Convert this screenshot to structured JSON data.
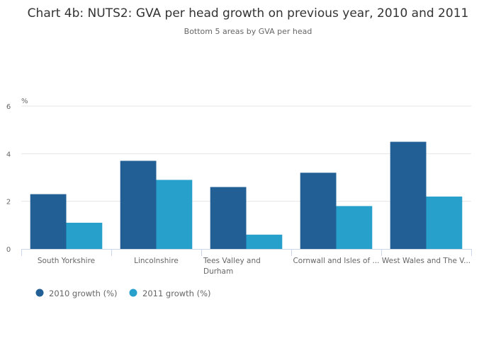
{
  "chart_data": {
    "type": "bar",
    "title": "Chart 4b: NUTS2: GVA per head growth on previous year, 2010 and 2011",
    "subtitle": "Bottom 5 areas by GVA per head",
    "ylabel": "%",
    "xlabel": "",
    "ylim": [
      0,
      6
    ],
    "yticks": [
      "0",
      "2",
      "4",
      "6"
    ],
    "grid": true,
    "legend": "bottom-left",
    "categories": [
      [
        "South Yorkshire"
      ],
      [
        "Lincolnshire"
      ],
      [
        "Tees Valley and",
        "Durham"
      ],
      [
        "Cornwall and Isles of ..."
      ],
      [
        "West Wales and The V..."
      ]
    ],
    "series": [
      {
        "name": "2010 growth (%)",
        "color": "#215f95",
        "values": [
          2.3,
          3.7,
          2.6,
          3.2,
          4.5
        ]
      },
      {
        "name": "2011 growth (%)",
        "color": "#27a0cc",
        "values": [
          1.1,
          2.9,
          0.6,
          1.8,
          2.2
        ]
      }
    ]
  }
}
